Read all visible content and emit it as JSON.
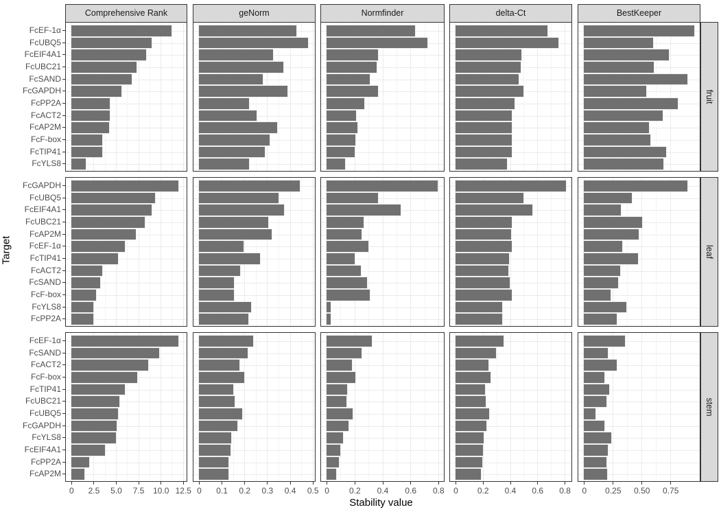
{
  "chart_data": {
    "type": "bar",
    "orientation": "horizontal",
    "xlabel": "Stability value",
    "ylabel": "Target",
    "facet_columns": [
      {
        "name": "Comprehensive Rank",
        "ticks": [
          0,
          2.5,
          5.0,
          7.5,
          10.0,
          12.5
        ],
        "tick_labels": [
          "0",
          "2.5",
          "5.0",
          "7.5",
          "10.0",
          "12.5"
        ],
        "xlim": [
          -0.6,
          12.9
        ]
      },
      {
        "name": "geNorm",
        "ticks": [
          0,
          0.1,
          0.2,
          0.3,
          0.4,
          0.5
        ],
        "tick_labels": [
          "0",
          "0.1",
          "0.2",
          "0.3",
          "0.4",
          "0.5"
        ],
        "xlim": [
          -0.024,
          0.51
        ]
      },
      {
        "name": "Normfinder",
        "ticks": [
          0,
          0.2,
          0.4,
          0.6,
          0.8
        ],
        "tick_labels": [
          "0",
          "0.2",
          "0.4",
          "0.6",
          "0.8"
        ],
        "xlim": [
          -0.04,
          0.84
        ]
      },
      {
        "name": "delta-Ct",
        "ticks": [
          0,
          0.2,
          0.4,
          0.6,
          0.8
        ],
        "tick_labels": [
          "0",
          "0.2",
          "0.4",
          "0.6",
          "0.8"
        ],
        "xlim": [
          -0.04,
          0.85
        ]
      },
      {
        "name": "BestKeeper",
        "ticks": [
          0,
          0.25,
          0.5,
          0.75
        ],
        "tick_labels": [
          "0",
          "0.25",
          "0.50",
          "0.75"
        ],
        "xlim": [
          -0.05,
          1.005
        ]
      }
    ],
    "facet_rows": [
      {
        "name": "fruit",
        "categories": [
          "FcEF-1α",
          "FcUBQ5",
          "FcEIF4A1",
          "FcUBC21",
          "FcSAND",
          "FcGAPDH",
          "FcPP2A",
          "FcACT2",
          "FcAP2M",
          "FcF-box",
          "FcTIP41",
          "FcYLS8"
        ],
        "series": [
          {
            "name": "Comprehensive Rank",
            "values": [
              11.2,
              9.0,
              8.4,
              7.3,
              6.8,
              5.6,
              4.3,
              4.3,
              4.2,
              3.5,
              3.5,
              1.6
            ]
          },
          {
            "name": "geNorm",
            "values": [
              0.43,
              0.48,
              0.325,
              0.37,
              0.28,
              0.39,
              0.22,
              0.255,
              0.345,
              0.31,
              0.29,
              0.22
            ]
          },
          {
            "name": "Normfinder",
            "values": [
              0.635,
              0.72,
              0.366,
              0.36,
              0.31,
              0.37,
              0.27,
              0.21,
              0.22,
              0.205,
              0.2,
              0.13
            ]
          },
          {
            "name": "delta-Ct",
            "values": [
              0.675,
              0.755,
              0.482,
              0.48,
              0.462,
              0.497,
              0.432,
              0.415,
              0.413,
              0.413,
              0.413,
              0.378
            ]
          },
          {
            "name": "BestKeeper",
            "values": [
              0.955,
              0.602,
              0.735,
              0.604,
              0.896,
              0.54,
              0.812,
              0.684,
              0.562,
              0.574,
              0.714,
              0.687
            ]
          }
        ]
      },
      {
        "name": "leaf",
        "categories": [
          "FcGAPDH",
          "FcUBQ5",
          "FcEIF4A1",
          "FcUBC21",
          "FcAP2M",
          "FcEF-1α",
          "FcTIP41",
          "FcACT2",
          "FcSAND",
          "FcF-box",
          "FcYLS8",
          "FcPP2A"
        ],
        "series": [
          {
            "name": "Comprehensive Rank",
            "values": [
              12.0,
              9.4,
              9.0,
              8.2,
              7.2,
              6.0,
              5.2,
              3.5,
              3.2,
              2.8,
              2.5,
              2.5
            ]
          },
          {
            "name": "geNorm",
            "values": [
              0.445,
              0.35,
              0.375,
              0.305,
              0.32,
              0.195,
              0.27,
              0.18,
              0.155,
              0.155,
              0.23,
              0.218
            ]
          },
          {
            "name": "Normfinder",
            "values": [
              0.795,
              0.37,
              0.53,
              0.265,
              0.25,
              0.3,
              0.2,
              0.245,
              0.29,
              0.31,
              0.028,
              0.028
            ]
          },
          {
            "name": "delta-Ct",
            "values": [
              0.81,
              0.497,
              0.565,
              0.415,
              0.408,
              0.413,
              0.39,
              0.386,
              0.397,
              0.413,
              0.34,
              0.34
            ]
          },
          {
            "name": "BestKeeper",
            "values": [
              0.895,
              0.415,
              0.318,
              0.504,
              0.474,
              0.331,
              0.468,
              0.313,
              0.297,
              0.229,
              0.366,
              0.284
            ]
          }
        ]
      },
      {
        "name": "stem",
        "categories": [
          "FcEF-1α",
          "FcSAND",
          "FcACT2",
          "FcF-box",
          "FcTIP41",
          "FcUBC21",
          "FcUBQ5",
          "FcGAPDH",
          "FcYLS8",
          "FcEIF4A1",
          "FcPP2A",
          "FcAP2M"
        ],
        "series": [
          {
            "name": "Comprehensive Rank",
            "values": [
              12.0,
              9.8,
              8.6,
              7.4,
              6.0,
              5.4,
              5.2,
              5.1,
              5.0,
              3.8,
              2.0,
              1.5
            ]
          },
          {
            "name": "geNorm",
            "values": [
              0.238,
              0.215,
              0.178,
              0.2,
              0.15,
              0.158,
              0.19,
              0.168,
              0.143,
              0.14,
              0.131,
              0.131
            ]
          },
          {
            "name": "Normfinder",
            "values": [
              0.325,
              0.25,
              0.18,
              0.205,
              0.145,
              0.142,
              0.186,
              0.155,
              0.118,
              0.1,
              0.087,
              0.067
            ]
          },
          {
            "name": "delta-Ct",
            "values": [
              0.35,
              0.295,
              0.242,
              0.255,
              0.218,
              0.22,
              0.247,
              0.225,
              0.205,
              0.2,
              0.195,
              0.188
            ]
          },
          {
            "name": "BestKeeper",
            "values": [
              0.355,
              0.204,
              0.284,
              0.178,
              0.219,
              0.196,
              0.1,
              0.175,
              0.235,
              0.209,
              0.194,
              0.202
            ]
          }
        ]
      }
    ],
    "grid": true,
    "legend": null,
    "bar_color": "#707070",
    "strip_color": "#d9d9d9"
  }
}
